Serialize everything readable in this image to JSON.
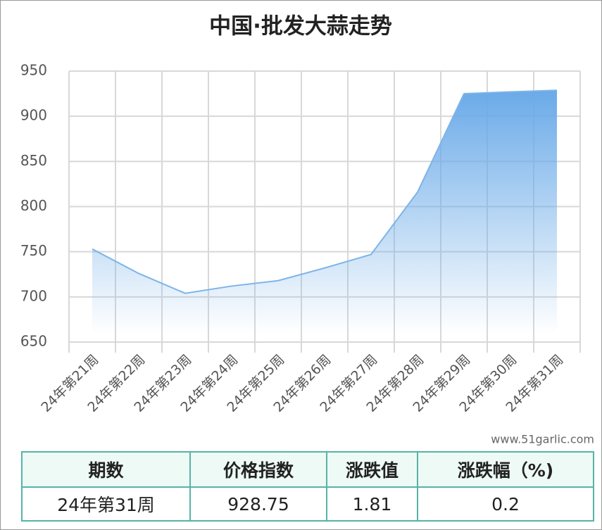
{
  "chart_data": {
    "type": "area",
    "title": "中国·批发大蒜走势",
    "categories": [
      "24年第21周",
      "24年第22周",
      "24年第23周",
      "24年第24周",
      "24年第25周",
      "24年第26周",
      "24年第27周",
      "24年第28周",
      "24年第29周",
      "24年第30周",
      "24年第31周"
    ],
    "values": [
      753,
      726,
      704,
      712,
      718,
      732,
      747,
      816,
      925,
      927,
      928.75
    ],
    "color": "#7db4e8",
    "ylim": [
      650,
      950
    ],
    "yticks": [
      650,
      700,
      750,
      800,
      850,
      900,
      950
    ],
    "grid": true
  },
  "watermark": "www.51garlic.com",
  "table": {
    "headers": [
      "期数",
      "价格指数",
      "涨跌值",
      "涨跌幅（%)"
    ],
    "rows": [
      [
        "24年第31周",
        "928.75",
        "1.81",
        "0.2"
      ]
    ]
  }
}
